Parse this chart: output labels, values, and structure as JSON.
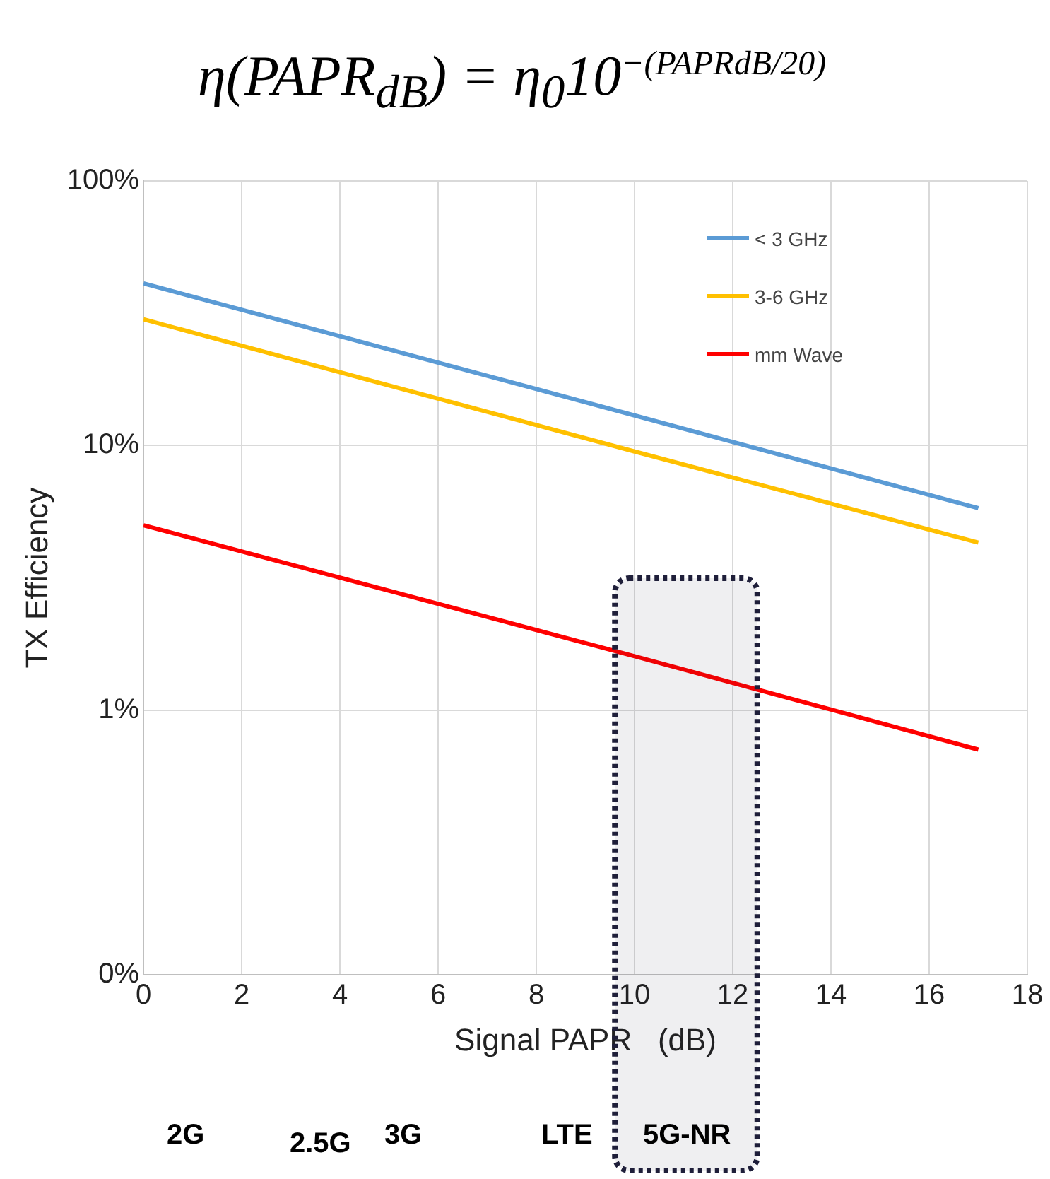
{
  "chart_data": {
    "type": "line",
    "title": "η(PAPR$_{dB}$) = η$_{0}$10$^{−(PAPRdB/20)}$",
    "xlabel": "Signal PAPR   (dB)",
    "ylabel": "TX Efficiency",
    "x": [
      0,
      10,
      17
    ],
    "series": [
      {
        "name": "< 3 GHz",
        "color": "#5b9bd5",
        "values": [
          41,
          13,
          5.8
        ]
      },
      {
        "name": "3-6 GHz",
        "color": "#ffc000",
        "values": [
          30,
          9.5,
          4.3
        ]
      },
      {
        "name": "mm Wave",
        "color": "#ff0000",
        "values": [
          5,
          1.6,
          0.71
        ]
      }
    ],
    "log": "y",
    "xlim": [
      0,
      18
    ],
    "xticks": [
      0,
      2,
      4,
      6,
      8,
      10,
      12,
      14,
      16,
      18
    ],
    "ylim": [
      0.1,
      100
    ],
    "yticks": [
      {
        "value": 0.1,
        "label": "0%"
      },
      {
        "value": 1,
        "label": "1%"
      },
      {
        "value": 10,
        "label": "10%"
      },
      {
        "value": 100,
        "label": "100%"
      }
    ],
    "grid": true,
    "legend": "top right",
    "marker": "none",
    "line_style": "solid",
    "bands": [
      {
        "axis": "x",
        "from": 9.6,
        "to": 12.5,
        "color": "#1f1f3a"
      }
    ],
    "annotations": [
      "2G",
      "2.5G",
      "3G",
      "LTE",
      "5G-NR"
    ]
  }
}
